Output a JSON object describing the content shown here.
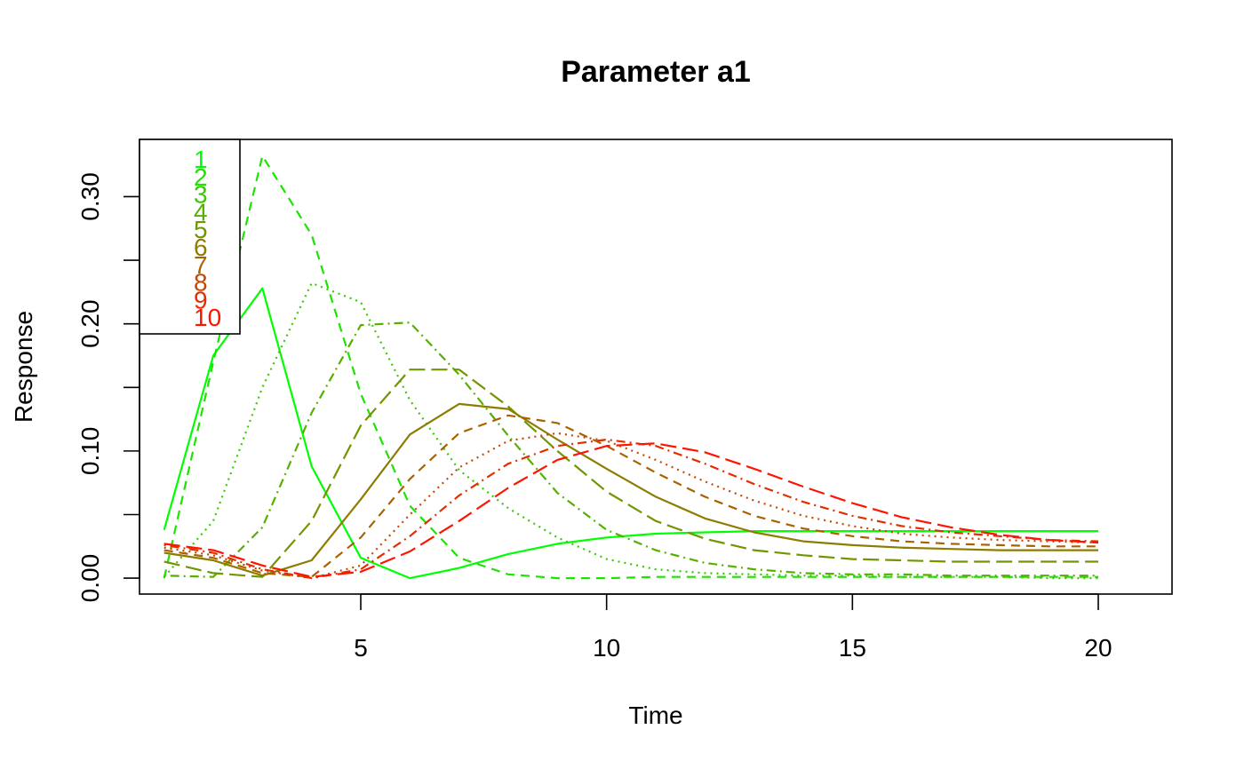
{
  "chart_data": {
    "type": "line",
    "title": "Parameter a1",
    "xlabel": "Time",
    "ylabel": "Response",
    "xlim": [
      0.5,
      21.5
    ],
    "ylim": [
      -0.0125,
      0.345
    ],
    "xticks": [
      5,
      10,
      15,
      20
    ],
    "xtick_labels": [
      "5",
      "10",
      "15",
      "20"
    ],
    "yticks": [
      0.0,
      0.05,
      0.1,
      0.15,
      0.2,
      0.25,
      0.3
    ],
    "ytick_labels": [
      "0.00",
      "",
      "0.10",
      "",
      "0.20",
      "",
      "0.30"
    ],
    "grid": false,
    "legend_position": "top-left",
    "x": [
      1,
      2,
      3,
      4,
      5,
      6,
      7,
      8,
      9,
      10,
      11,
      12,
      13,
      14,
      15,
      16,
      17,
      18,
      19,
      20
    ],
    "series": [
      {
        "name": "1",
        "color": "#00FF00",
        "dash": "solid",
        "values": [
          0.038,
          0.175,
          0.228,
          0.088,
          0.016,
          0.0,
          0.008,
          0.019,
          0.027,
          0.032,
          0.035,
          0.036,
          0.037,
          0.037,
          0.037,
          0.037,
          0.037,
          0.037,
          0.037,
          0.037
        ]
      },
      {
        "name": "2",
        "color": "#1CE400",
        "dash": "dashed",
        "values": [
          0.0,
          0.17,
          0.332,
          0.27,
          0.145,
          0.057,
          0.016,
          0.003,
          0.0,
          0.0,
          0.001,
          0.001,
          0.001,
          0.001,
          0.001,
          0.001,
          0.001,
          0.001,
          0.001,
          0.001
        ]
      },
      {
        "name": "3",
        "color": "#38CA00",
        "dash": "dotted",
        "values": [
          0.001,
          0.045,
          0.15,
          0.232,
          0.217,
          0.14,
          0.085,
          0.055,
          0.032,
          0.015,
          0.007,
          0.004,
          0.003,
          0.002,
          0.002,
          0.001,
          0.001,
          0.001,
          0.0,
          0.0
        ]
      },
      {
        "name": "4",
        "color": "#55B000",
        "dash": "dotdash",
        "values": [
          0.002,
          0.001,
          0.04,
          0.13,
          0.199,
          0.201,
          0.16,
          0.112,
          0.067,
          0.038,
          0.022,
          0.012,
          0.007,
          0.004,
          0.003,
          0.003,
          0.002,
          0.002,
          0.002,
          0.002
        ]
      },
      {
        "name": "5",
        "color": "#719600",
        "dash": "longdash",
        "values": [
          0.013,
          0.004,
          0.001,
          0.045,
          0.12,
          0.164,
          0.164,
          0.135,
          0.1,
          0.068,
          0.045,
          0.031,
          0.022,
          0.018,
          0.015,
          0.014,
          0.013,
          0.013,
          0.013,
          0.013
        ]
      },
      {
        "name": "6",
        "color": "#8E7C00",
        "dash": "solid",
        "values": [
          0.02,
          0.014,
          0.002,
          0.014,
          0.062,
          0.113,
          0.137,
          0.133,
          0.109,
          0.086,
          0.064,
          0.047,
          0.036,
          0.029,
          0.026,
          0.024,
          0.023,
          0.022,
          0.022,
          0.022
        ]
      },
      {
        "name": "7",
        "color": "#AA6200",
        "dash": "dashed",
        "values": [
          0.022,
          0.016,
          0.004,
          0.001,
          0.032,
          0.078,
          0.114,
          0.128,
          0.122,
          0.104,
          0.083,
          0.064,
          0.049,
          0.039,
          0.033,
          0.029,
          0.027,
          0.026,
          0.025,
          0.025
        ]
      },
      {
        "name": "8",
        "color": "#C64800",
        "dash": "dotted",
        "values": [
          0.024,
          0.018,
          0.006,
          0.0,
          0.01,
          0.05,
          0.087,
          0.108,
          0.114,
          0.108,
          0.093,
          0.076,
          0.061,
          0.049,
          0.041,
          0.035,
          0.032,
          0.03,
          0.029,
          0.028
        ]
      },
      {
        "name": "9",
        "color": "#E32E00",
        "dash": "dotdash",
        "values": [
          0.026,
          0.02,
          0.007,
          0.0,
          0.007,
          0.033,
          0.065,
          0.09,
          0.104,
          0.109,
          0.104,
          0.09,
          0.074,
          0.06,
          0.049,
          0.041,
          0.036,
          0.033,
          0.03,
          0.029
        ]
      },
      {
        "name": "10",
        "color": "#FF1400",
        "dash": "longdash",
        "values": [
          0.027,
          0.022,
          0.01,
          0.001,
          0.005,
          0.021,
          0.045,
          0.071,
          0.093,
          0.104,
          0.106,
          0.099,
          0.086,
          0.072,
          0.059,
          0.048,
          0.04,
          0.034,
          0.03,
          0.028
        ]
      }
    ]
  }
}
